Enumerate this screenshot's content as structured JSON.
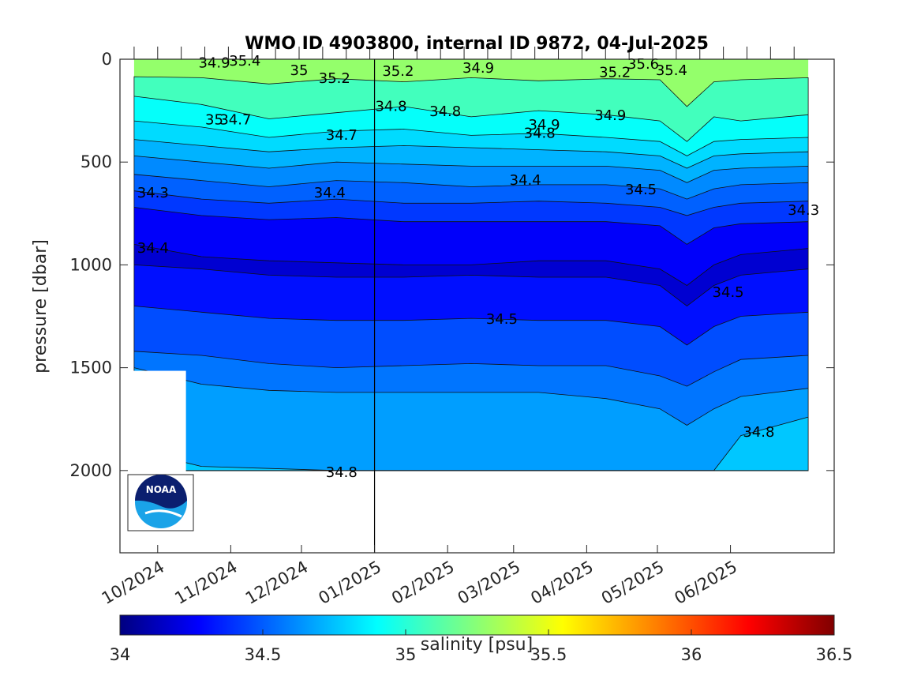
{
  "chart_data": {
    "type": "heatmap",
    "title": "WMO ID 4903800, internal ID 9872, 04-Jul-2025",
    "ylabel": "pressure [dbar]",
    "xlabel": "",
    "ylim": [
      0,
      2400
    ],
    "y_reversed": true,
    "y_ticks": [
      0,
      500,
      1000,
      1500,
      2000
    ],
    "x_ticks": [
      "10/2024",
      "11/2024",
      "12/2024",
      "01/2025",
      "02/2025",
      "03/2025",
      "04/2025",
      "05/2025",
      "06/2025"
    ],
    "x_range": [
      "2024-09-15",
      "2025-07-15"
    ],
    "profile_start": "2024-09-21",
    "profile_end": "2025-07-04",
    "marker_date": "2025-01-01",
    "colorbar": {
      "label": "salinity [psu]",
      "min": 34,
      "max": 36.5,
      "ticks": [
        "34",
        "34.5",
        "35",
        "35.5",
        "36",
        "36.5"
      ],
      "colormap": "jet"
    },
    "layers": [
      {
        "salinity": 35.1,
        "depth": [
          [
            0,
            85
          ],
          [
            0.1,
            90
          ],
          [
            0.2,
            120
          ],
          [
            0.3,
            95
          ],
          [
            0.4,
            110
          ],
          [
            0.5,
            90
          ],
          [
            0.6,
            105
          ],
          [
            0.7,
            95
          ],
          [
            0.78,
            100
          ],
          [
            0.82,
            230
          ],
          [
            0.86,
            110
          ],
          [
            0.9,
            100
          ],
          [
            1,
            90
          ]
        ]
      },
      {
        "salinity": 34.95,
        "depth": [
          [
            0,
            180
          ],
          [
            0.1,
            220
          ],
          [
            0.2,
            290
          ],
          [
            0.3,
            260
          ],
          [
            0.4,
            230
          ],
          [
            0.5,
            280
          ],
          [
            0.6,
            250
          ],
          [
            0.7,
            270
          ],
          [
            0.78,
            300
          ],
          [
            0.82,
            400
          ],
          [
            0.86,
            280
          ],
          [
            0.9,
            300
          ],
          [
            1,
            270
          ]
        ]
      },
      {
        "salinity": 34.85,
        "depth": [
          [
            0,
            300
          ],
          [
            0.1,
            330
          ],
          [
            0.2,
            380
          ],
          [
            0.3,
            350
          ],
          [
            0.4,
            340
          ],
          [
            0.5,
            370
          ],
          [
            0.6,
            360
          ],
          [
            0.7,
            380
          ],
          [
            0.78,
            400
          ],
          [
            0.82,
            470
          ],
          [
            0.86,
            400
          ],
          [
            0.9,
            390
          ],
          [
            1,
            380
          ]
        ]
      },
      {
        "salinity": 34.75,
        "depth": [
          [
            0,
            390
          ],
          [
            0.1,
            420
          ],
          [
            0.2,
            450
          ],
          [
            0.3,
            430
          ],
          [
            0.4,
            420
          ],
          [
            0.5,
            430
          ],
          [
            0.6,
            440
          ],
          [
            0.7,
            450
          ],
          [
            0.78,
            470
          ],
          [
            0.82,
            530
          ],
          [
            0.86,
            470
          ],
          [
            0.9,
            460
          ],
          [
            1,
            450
          ]
        ]
      },
      {
        "salinity": 34.65,
        "depth": [
          [
            0,
            470
          ],
          [
            0.1,
            500
          ],
          [
            0.2,
            530
          ],
          [
            0.3,
            500
          ],
          [
            0.4,
            510
          ],
          [
            0.5,
            520
          ],
          [
            0.6,
            520
          ],
          [
            0.7,
            520
          ],
          [
            0.78,
            540
          ],
          [
            0.82,
            600
          ],
          [
            0.86,
            540
          ],
          [
            0.9,
            530
          ],
          [
            1,
            520
          ]
        ]
      },
      {
        "salinity": 34.55,
        "depth": [
          [
            0,
            560
          ],
          [
            0.1,
            590
          ],
          [
            0.2,
            620
          ],
          [
            0.3,
            590
          ],
          [
            0.4,
            600
          ],
          [
            0.5,
            620
          ],
          [
            0.6,
            610
          ],
          [
            0.7,
            610
          ],
          [
            0.78,
            630
          ],
          [
            0.82,
            680
          ],
          [
            0.86,
            630
          ],
          [
            0.9,
            610
          ],
          [
            1,
            600
          ]
        ]
      },
      {
        "salinity": 34.45,
        "depth": [
          [
            0,
            640
          ],
          [
            0.1,
            680
          ],
          [
            0.2,
            700
          ],
          [
            0.3,
            680
          ],
          [
            0.4,
            700
          ],
          [
            0.5,
            700
          ],
          [
            0.6,
            690
          ],
          [
            0.7,
            700
          ],
          [
            0.78,
            720
          ],
          [
            0.82,
            760
          ],
          [
            0.86,
            720
          ],
          [
            0.9,
            700
          ],
          [
            1,
            690
          ]
        ]
      },
      {
        "salinity": 34.3,
        "depth": [
          [
            0,
            720
          ],
          [
            0.1,
            760
          ],
          [
            0.2,
            780
          ],
          [
            0.3,
            770
          ],
          [
            0.4,
            790
          ],
          [
            0.5,
            790
          ],
          [
            0.6,
            790
          ],
          [
            0.7,
            790
          ],
          [
            0.78,
            810
          ],
          [
            0.82,
            900
          ],
          [
            0.86,
            820
          ],
          [
            0.9,
            800
          ],
          [
            1,
            790
          ]
        ]
      },
      {
        "salinity": 34.2,
        "depth": [
          [
            0,
            900
          ],
          [
            0.1,
            960
          ],
          [
            0.2,
            980
          ],
          [
            0.3,
            990
          ],
          [
            0.4,
            1000
          ],
          [
            0.5,
            1000
          ],
          [
            0.6,
            980
          ],
          [
            0.7,
            980
          ],
          [
            0.78,
            1020
          ],
          [
            0.82,
            1100
          ],
          [
            0.86,
            1000
          ],
          [
            0.9,
            950
          ],
          [
            1,
            920
          ]
        ]
      },
      {
        "salinity": 34.35,
        "depth": [
          [
            0,
            1000
          ],
          [
            0.1,
            1020
          ],
          [
            0.2,
            1050
          ],
          [
            0.3,
            1060
          ],
          [
            0.4,
            1060
          ],
          [
            0.5,
            1050
          ],
          [
            0.6,
            1060
          ],
          [
            0.7,
            1060
          ],
          [
            0.78,
            1100
          ],
          [
            0.82,
            1200
          ],
          [
            0.86,
            1100
          ],
          [
            0.9,
            1050
          ],
          [
            1,
            1020
          ]
        ]
      },
      {
        "salinity": 34.5,
        "depth": [
          [
            0,
            1200
          ],
          [
            0.1,
            1230
          ],
          [
            0.2,
            1260
          ],
          [
            0.3,
            1270
          ],
          [
            0.4,
            1270
          ],
          [
            0.5,
            1260
          ],
          [
            0.6,
            1270
          ],
          [
            0.7,
            1270
          ],
          [
            0.78,
            1300
          ],
          [
            0.82,
            1390
          ],
          [
            0.86,
            1300
          ],
          [
            0.9,
            1250
          ],
          [
            1,
            1230
          ]
        ]
      },
      {
        "salinity": 34.6,
        "depth": [
          [
            0,
            1420
          ],
          [
            0.1,
            1440
          ],
          [
            0.2,
            1480
          ],
          [
            0.3,
            1500
          ],
          [
            0.4,
            1490
          ],
          [
            0.5,
            1480
          ],
          [
            0.6,
            1490
          ],
          [
            0.7,
            1490
          ],
          [
            0.78,
            1540
          ],
          [
            0.82,
            1590
          ],
          [
            0.86,
            1520
          ],
          [
            0.9,
            1460
          ],
          [
            1,
            1440
          ]
        ]
      },
      {
        "salinity": 34.7,
        "depth": [
          [
            0,
            1500
          ],
          [
            0.1,
            1580
          ],
          [
            0.2,
            1610
          ],
          [
            0.3,
            1620
          ],
          [
            0.4,
            1620
          ],
          [
            0.5,
            1620
          ],
          [
            0.6,
            1620
          ],
          [
            0.7,
            1650
          ],
          [
            0.78,
            1700
          ],
          [
            0.82,
            1780
          ],
          [
            0.86,
            1700
          ],
          [
            0.9,
            1640
          ],
          [
            1,
            1600
          ]
        ]
      },
      {
        "salinity": 34.8,
        "depth": [
          [
            0,
            1900
          ],
          [
            0.1,
            1980
          ],
          [
            0.2,
            1990
          ],
          [
            0.3,
            2000
          ],
          [
            0.4,
            2000
          ],
          [
            0.5,
            2000
          ],
          [
            0.6,
            2000
          ],
          [
            0.7,
            2000
          ],
          [
            0.78,
            2000
          ],
          [
            0.82,
            2000
          ],
          [
            0.86,
            2000
          ],
          [
            0.9,
            1830
          ],
          [
            1,
            1740
          ]
        ]
      }
    ],
    "contour_labels": [
      {
        "text": "34.9",
        "date": "2024-10-25",
        "p": 20
      },
      {
        "text": "35.4",
        "date": "2024-11-07",
        "p": 10
      },
      {
        "text": "35",
        "date": "2024-11-30",
        "p": 55
      },
      {
        "text": "35.2",
        "date": "2024-12-15",
        "p": 95
      },
      {
        "text": "35.2",
        "date": "2025-01-11",
        "p": 60
      },
      {
        "text": "34.9",
        "date": "2025-02-14",
        "p": 45
      },
      {
        "text": "35.2",
        "date": "2025-04-13",
        "p": 65
      },
      {
        "text": "35.6",
        "date": "2025-04-25",
        "p": 25
      },
      {
        "text": "35.4",
        "date": "2025-05-07",
        "p": 55
      },
      {
        "text": "34.8",
        "date": "2025-01-08",
        "p": 230
      },
      {
        "text": "34.8",
        "date": "2025-01-31",
        "p": 255
      },
      {
        "text": "35",
        "date": "2024-10-25",
        "p": 295
      },
      {
        "text": "34.7",
        "date": "2024-11-03",
        "p": 295
      },
      {
        "text": "34.9",
        "date": "2025-04-11",
        "p": 275
      },
      {
        "text": "34.9",
        "date": "2025-03-14",
        "p": 320
      },
      {
        "text": "34.8",
        "date": "2025-03-12",
        "p": 360
      },
      {
        "text": "34.7",
        "date": "2024-12-18",
        "p": 370
      },
      {
        "text": "34.4",
        "date": "2025-03-06",
        "p": 590
      },
      {
        "text": "34.3",
        "date": "2024-09-29",
        "p": 650
      },
      {
        "text": "34.4",
        "date": "2024-12-13",
        "p": 650
      },
      {
        "text": "34.5",
        "date": "2025-04-24",
        "p": 635
      },
      {
        "text": "34.3",
        "date": "2025-07-02",
        "p": 735
      },
      {
        "text": "34.4",
        "date": "2024-09-29",
        "p": 920
      },
      {
        "text": "34.5",
        "date": "2025-05-31",
        "p": 1135
      },
      {
        "text": "34.5",
        "date": "2025-02-24",
        "p": 1265
      },
      {
        "text": "34.8",
        "date": "2025-06-13",
        "p": 1815
      },
      {
        "text": "34.8",
        "date": "2024-12-18",
        "p": 2010
      }
    ],
    "logo": {
      "text": "NOAA"
    }
  }
}
